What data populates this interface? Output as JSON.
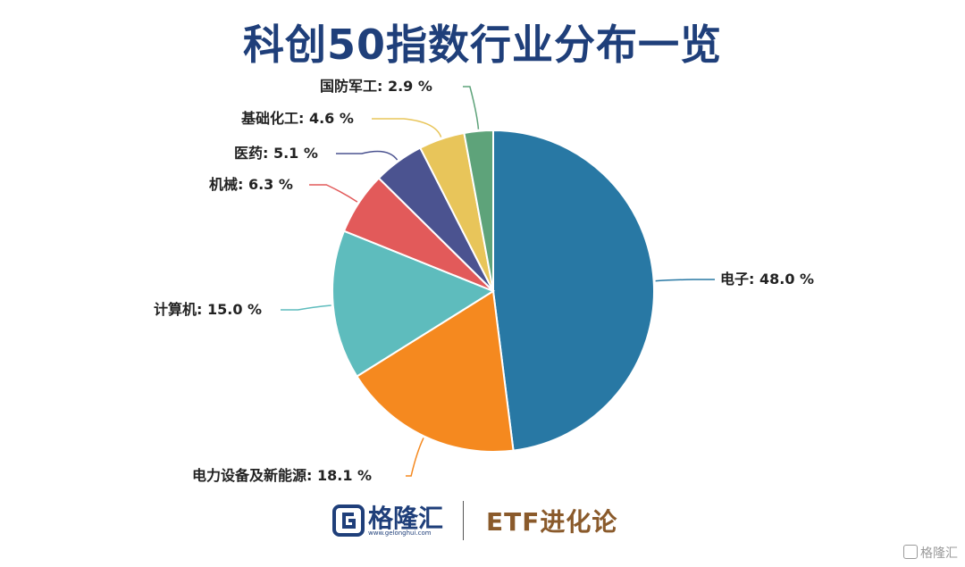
{
  "title": "科创50指数行业分布一览",
  "chart_data": {
    "type": "pie",
    "title": "科创50指数行业分布一览",
    "slices": [
      {
        "name": "电子",
        "value": 48.0,
        "label": "电子: 48.0 %",
        "color": "#2878a4"
      },
      {
        "name": "电力设备及新能源",
        "value": 18.1,
        "label": "电力设备及新能源: 18.1 %",
        "color": "#f5891f"
      },
      {
        "name": "计算机",
        "value": 15.0,
        "label": "计算机: 15.0 %",
        "color": "#5ebcbd"
      },
      {
        "name": "机械",
        "value": 6.3,
        "label": "机械: 6.3 %",
        "color": "#e25a5a"
      },
      {
        "name": "医药",
        "value": 5.1,
        "label": "医药: 5.1 %",
        "color": "#4b5390"
      },
      {
        "name": "基础化工",
        "value": 4.6,
        "label": "基础化工: 4.6 %",
        "color": "#e8c55a"
      },
      {
        "name": "国防军工",
        "value": 2.9,
        "label": "国防军工: 2.9 %",
        "color": "#5ea37a"
      }
    ],
    "start": "top",
    "direction": "clockwise"
  },
  "footer": {
    "brand": "格隆汇",
    "brand_url": "www.gelonghui.com",
    "etf": "ETF进化论"
  },
  "watermark": "格隆汇"
}
